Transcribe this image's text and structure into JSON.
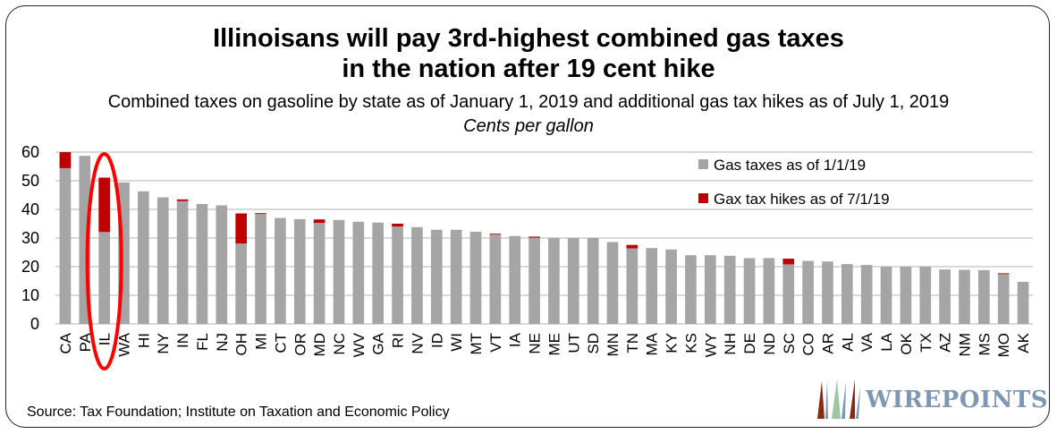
{
  "header": {
    "title_line1": "Illinoisans will pay 3rd-highest combined gas taxes",
    "title_line2": "in the nation after 19 cent hike",
    "subtitle": "Combined taxes on gasoline by state as of January 1, 2019 and additional gas tax hikes as of July 1, 2019",
    "units": "Cents per gallon"
  },
  "footer": {
    "source": "Source: Tax Foundation; Institute on Taxation and Economic Policy",
    "logo_text": "WIREPOINTS"
  },
  "colors": {
    "base": "#a5a5a5",
    "hike": "#c00000",
    "highlight": "#ff0000",
    "grid": "#d9d9d9"
  },
  "chart_data": {
    "type": "bar",
    "stacked": true,
    "title": "Illinoisans will pay 3rd-highest combined gas taxes in the nation after 19 cent hike",
    "subtitle": "Combined taxes on gasoline by state as of January 1, 2019 and additional gas tax hikes as of July 1, 2019",
    "ylabel": "Cents per gallon",
    "xlabel": "",
    "ylim": [
      0,
      60
    ],
    "yticks": [
      0,
      10,
      20,
      30,
      40,
      50,
      60
    ],
    "grid": true,
    "legend_position": "top-right",
    "highlight_category": "IL",
    "categories": [
      "CA",
      "PA",
      "IL",
      "WA",
      "HI",
      "NY",
      "IN",
      "FL",
      "NJ",
      "OH",
      "MI",
      "CT",
      "OR",
      "MD",
      "NC",
      "WV",
      "GA",
      "RI",
      "NV",
      "ID",
      "WI",
      "MT",
      "VT",
      "IA",
      "NE",
      "ME",
      "UT",
      "SD",
      "MN",
      "TN",
      "MA",
      "KY",
      "KS",
      "WY",
      "NH",
      "DE",
      "ND",
      "SC",
      "CO",
      "AR",
      "AL",
      "VA",
      "LA",
      "OK",
      "TX",
      "AZ",
      "NM",
      "MS",
      "MO",
      "AK"
    ],
    "series": [
      {
        "name": "Gas taxes as of 1/1/19",
        "values": [
          54.4,
          58.7,
          32.1,
          49.4,
          46.3,
          44.2,
          42.9,
          41.9,
          41.4,
          28.1,
          38.4,
          37.0,
          36.6,
          35.3,
          36.3,
          35.7,
          35.4,
          34.0,
          33.8,
          32.9,
          32.9,
          32.2,
          31.2,
          30.7,
          30.1,
          30.0,
          30.0,
          30.0,
          28.6,
          26.4,
          26.5,
          26.0,
          24.0,
          24.0,
          23.8,
          23.0,
          23.0,
          20.8,
          22.0,
          21.8,
          20.9,
          20.6,
          20.0,
          20.0,
          20.0,
          19.0,
          18.9,
          18.8,
          17.4,
          14.7
        ]
      },
      {
        "name": "Gax tax hikes as of 7/1/19",
        "values": [
          5.6,
          0,
          19.0,
          0,
          0,
          0,
          0.6,
          0,
          0,
          10.5,
          0.3,
          0,
          0,
          1.2,
          0,
          0,
          0,
          1.0,
          0,
          0,
          0,
          0,
          0.3,
          0,
          0.4,
          0,
          0,
          0,
          0,
          1.2,
          0,
          0,
          0,
          0,
          0,
          0,
          0,
          2.0,
          0,
          0,
          0,
          0,
          0,
          0,
          0,
          0,
          0,
          0,
          0.3,
          0
        ]
      }
    ]
  }
}
